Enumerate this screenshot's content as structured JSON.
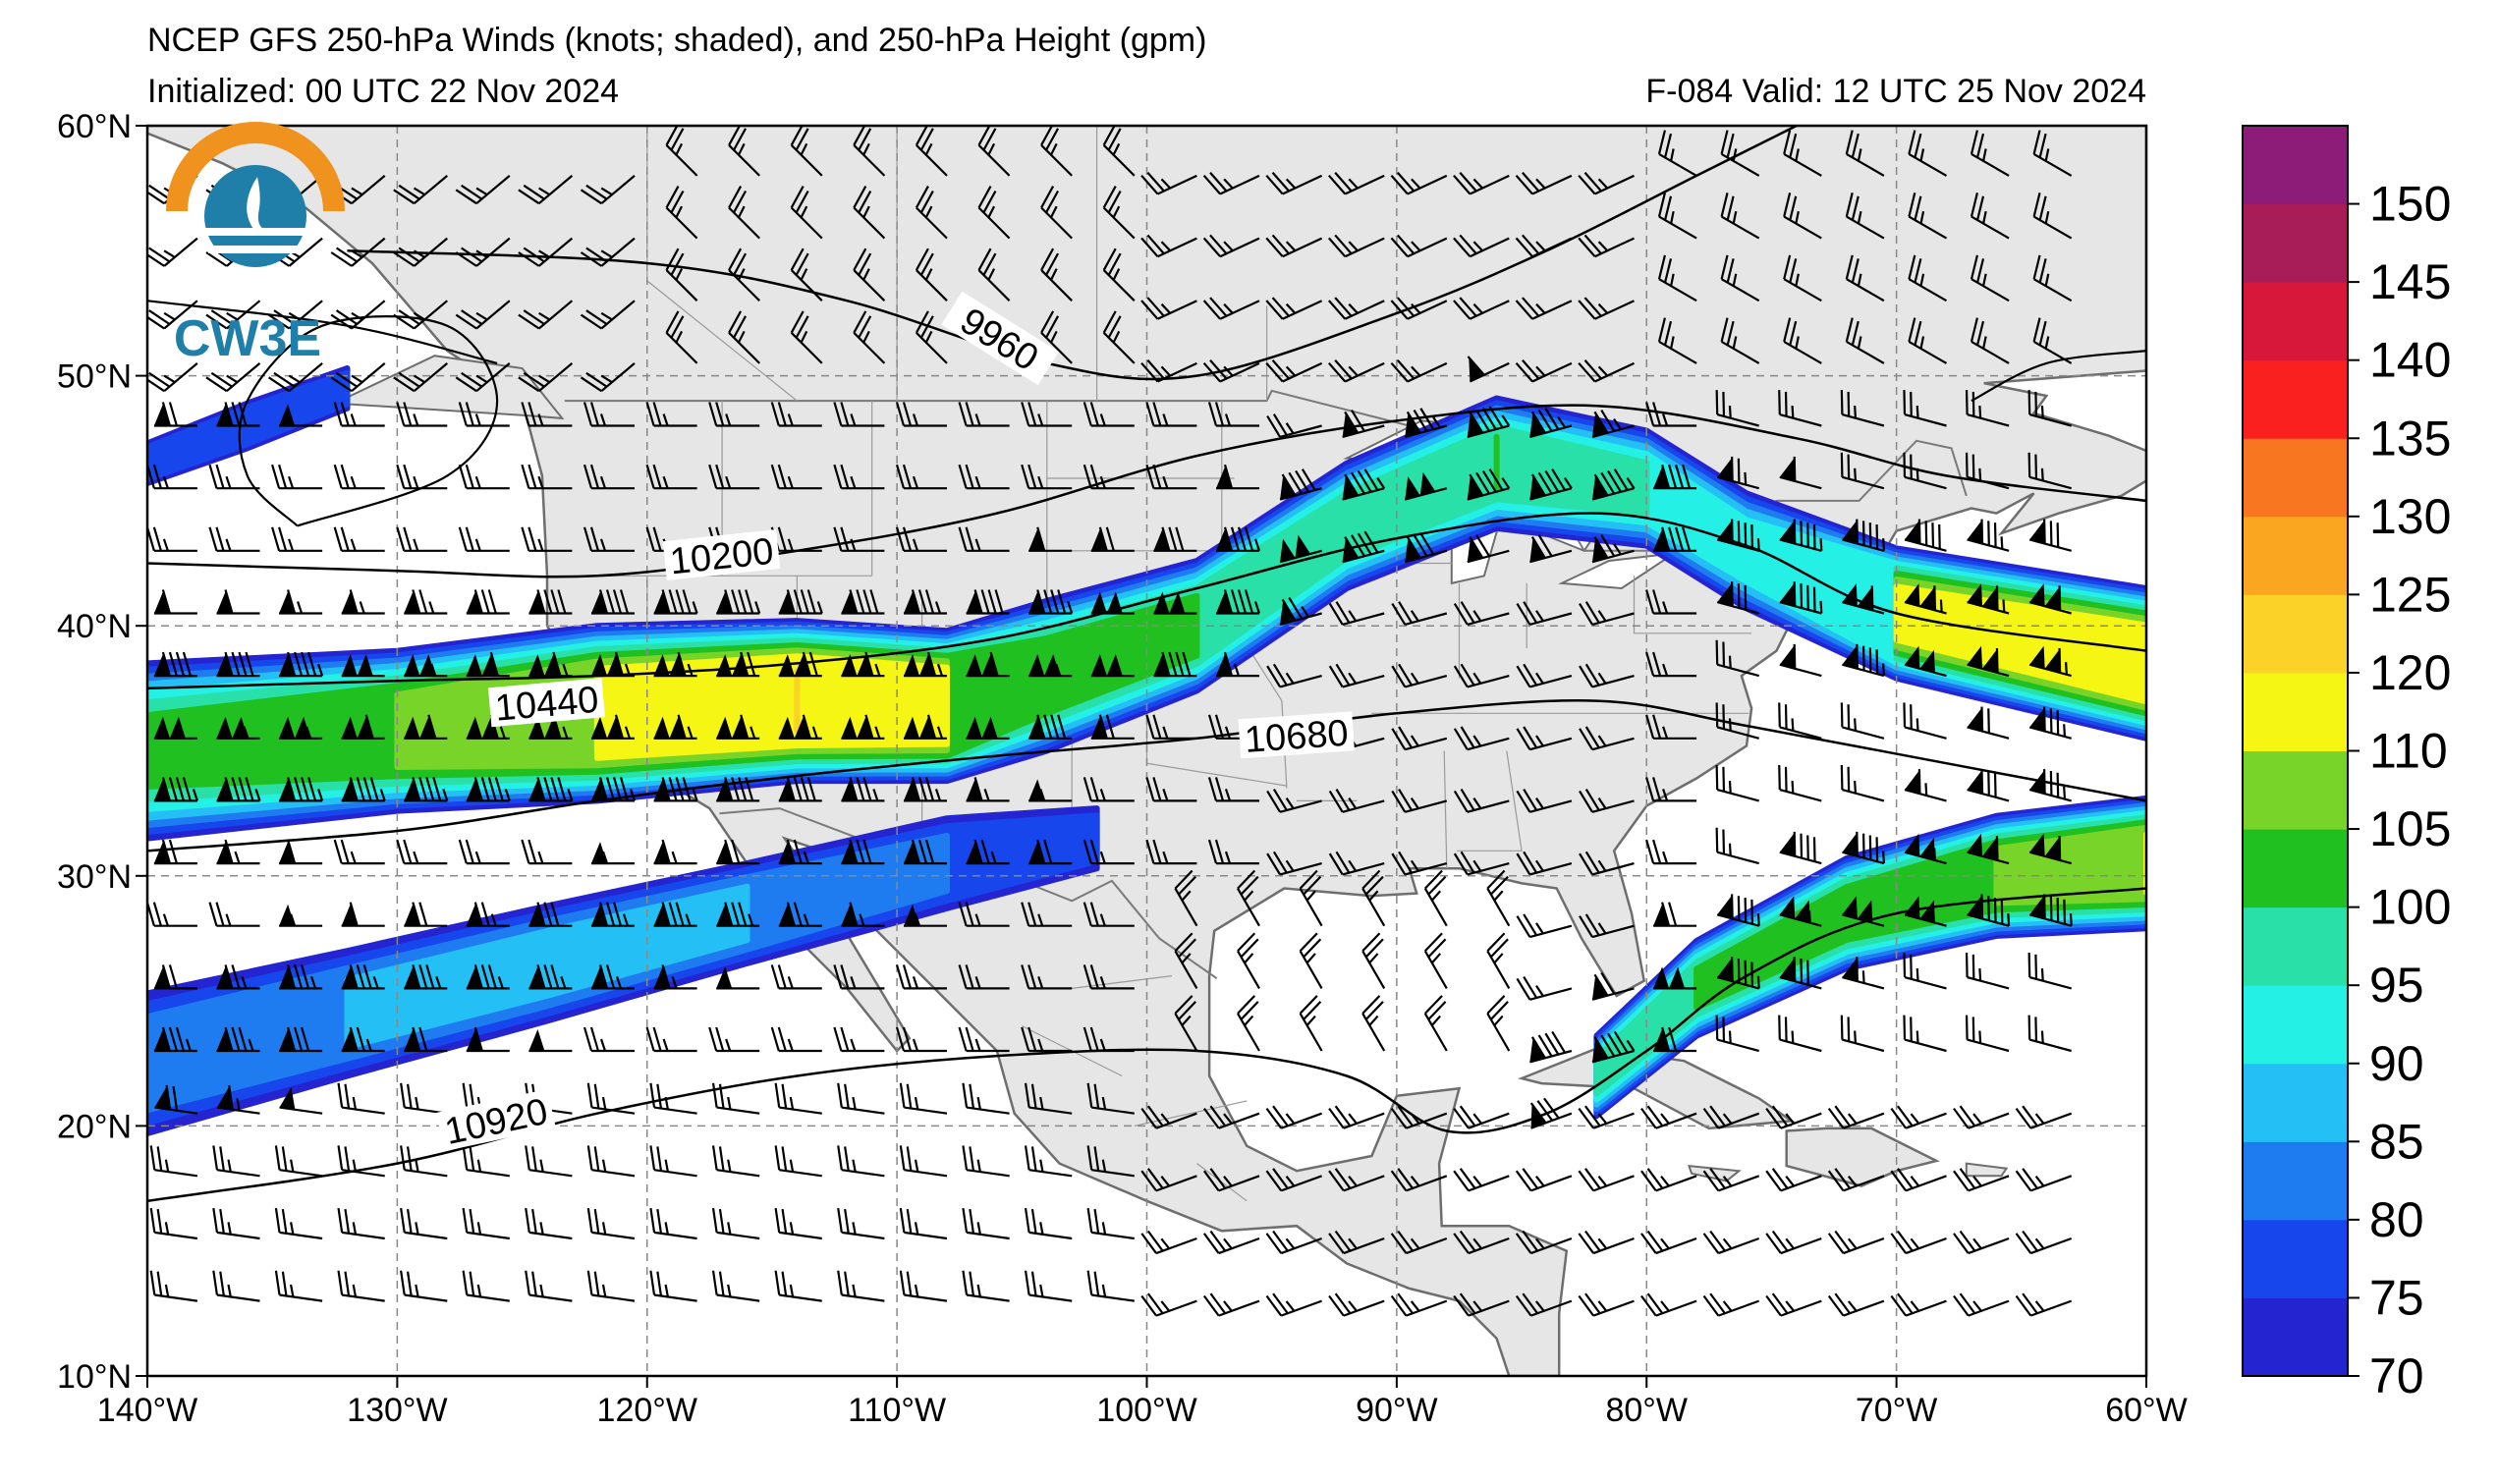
{
  "title": {
    "line1": "NCEP GFS 250-hPa Winds (knots; shaded), and 250-hPa Height (gpm)",
    "initialized": "Initialized: 00 UTC 22 Nov 2024",
    "valid": "F-084  Valid: 12 UTC 25 Nov 2024"
  },
  "logo": {
    "text": "CW3E"
  },
  "map": {
    "lon_range": [
      -140,
      -60
    ],
    "lat_range": [
      10,
      60
    ],
    "lon_ticks": [
      {
        "value": -140,
        "label": "140°W"
      },
      {
        "value": -130,
        "label": "130°W"
      },
      {
        "value": -120,
        "label": "120°W"
      },
      {
        "value": -110,
        "label": "110°W"
      },
      {
        "value": -100,
        "label": "100°W"
      },
      {
        "value": -90,
        "label": "90°W"
      },
      {
        "value": -80,
        "label": "80°W"
      },
      {
        "value": -70,
        "label": "70°W"
      },
      {
        "value": -60,
        "label": "60°W"
      }
    ],
    "lat_ticks": [
      {
        "value": 60,
        "label": "60°N"
      },
      {
        "value": 50,
        "label": "50°N"
      },
      {
        "value": 40,
        "label": "40°N"
      },
      {
        "value": 30,
        "label": "30°N"
      },
      {
        "value": 20,
        "label": "20°N"
      },
      {
        "value": 10,
        "label": "10°N"
      }
    ],
    "land_color": "#e6e6e6",
    "ocean_color": "#ffffff",
    "gridlines": true
  },
  "contours": [
    {
      "label": "9960",
      "points": [
        [
          -132,
          55
        ],
        [
          -120,
          54.5
        ],
        [
          -112,
          53
        ],
        [
          -104,
          50.5
        ],
        [
          -98,
          50
        ],
        [
          -90,
          52.5
        ],
        [
          -84,
          55
        ],
        [
          -78,
          58
        ],
        [
          -74,
          60
        ]
      ],
      "label_at": [
        -106,
        51.3
      ],
      "label_angle": 32
    },
    {
      "label": "10200",
      "points": [
        [
          -140,
          42.5
        ],
        [
          -130,
          42.2
        ],
        [
          -122,
          42
        ],
        [
          -114,
          43
        ],
        [
          -106,
          44.5
        ],
        [
          -98,
          46.8
        ],
        [
          -90,
          48.2
        ],
        [
          -82,
          48.8
        ],
        [
          -74,
          47.5
        ],
        [
          -68,
          46
        ],
        [
          -60,
          45
        ]
      ],
      "label_at": [
        -117,
        42.6
      ],
      "label_angle": -6
    },
    {
      "label": "10440",
      "points": [
        [
          -140,
          37.5
        ],
        [
          -130,
          37.8
        ],
        [
          -122,
          38
        ],
        [
          -114,
          38.5
        ],
        [
          -106,
          39.5
        ],
        [
          -98,
          41.5
        ],
        [
          -90,
          43.5
        ],
        [
          -82,
          44.5
        ],
        [
          -76,
          43.2
        ],
        [
          -70,
          40.5
        ],
        [
          -60,
          39
        ]
      ],
      "label_at": [
        -124,
        36.7
      ],
      "label_angle": -5
    },
    {
      "label": "10680",
      "points": [
        [
          -140,
          31
        ],
        [
          -130,
          31.8
        ],
        [
          -122,
          33
        ],
        [
          -114,
          34
        ],
        [
          -106,
          34.8
        ],
        [
          -98,
          35.5
        ],
        [
          -90,
          36.5
        ],
        [
          -82,
          37
        ],
        [
          -76,
          36
        ],
        [
          -68,
          34.5
        ],
        [
          -60,
          33
        ]
      ],
      "label_at": [
        -94,
        35.4
      ],
      "label_angle": -4
    },
    {
      "label": "10920",
      "points": [
        [
          -140,
          17
        ],
        [
          -130,
          18.5
        ],
        [
          -122,
          20.5
        ],
        [
          -114,
          22
        ],
        [
          -106,
          22.8
        ],
        [
          -98,
          23
        ],
        [
          -92,
          22
        ],
        [
          -88,
          19.8
        ],
        [
          -84,
          20.5
        ],
        [
          -80,
          23
        ],
        [
          -76,
          26
        ],
        [
          -70,
          28.5
        ],
        [
          -60,
          29.5
        ]
      ],
      "label_at": [
        -126,
        20
      ],
      "label_angle": -12
    }
  ],
  "jets": [
    {
      "name": "northern",
      "points": [
        [
          -140,
          35
        ],
        [
          -130,
          35.8
        ],
        [
          -122,
          36.5
        ],
        [
          -114,
          37
        ],
        [
          -108,
          36.8
        ],
        [
          -104,
          38
        ],
        [
          -98,
          40
        ],
        [
          -92,
          44
        ],
        [
          -86,
          46.5
        ],
        [
          -80,
          45.5
        ],
        [
          -76,
          43
        ],
        [
          -70,
          40.5
        ],
        [
          -60,
          38.5
        ]
      ],
      "halfwidth": [
        3.5,
        3.2,
        3.5,
        3.2,
        3.0,
        3.0,
        2.6,
        2.5,
        2.6,
        2.3,
        2.3,
        2.6,
        3.0
      ],
      "core": [
        100,
        108,
        118,
        122,
        118,
        104,
        102,
        98,
        100,
        95,
        92,
        112,
        118
      ]
    },
    {
      "name": "southern",
      "points": [
        [
          -140,
          22.5
        ],
        [
          -132,
          24.5
        ],
        [
          -124,
          26.5
        ],
        [
          -116,
          28.5
        ],
        [
          -108,
          30.5
        ],
        [
          -102,
          31.5
        ]
      ],
      "halfwidth": [
        2.8,
        2.5,
        2.3,
        2.0,
        1.8,
        1.2
      ],
      "core": [
        82,
        85,
        86,
        85,
        80,
        76
      ]
    },
    {
      "name": "caribbean",
      "points": [
        [
          -82,
          22
        ],
        [
          -78,
          25.5
        ],
        [
          -72,
          28.5
        ],
        [
          -66,
          30
        ],
        [
          -60,
          30.5
        ]
      ],
      "halfwidth": [
        1.6,
        1.9,
        2.2,
        2.4,
        2.6
      ],
      "core": [
        95,
        100,
        103,
        108,
        114
      ]
    },
    {
      "name": "pacific_nw",
      "points": [
        [
          -140,
          46.5
        ],
        [
          -136,
          48
        ],
        [
          -132,
          49.5
        ]
      ],
      "halfwidth": [
        0.8,
        0.9,
        0.8
      ],
      "core": [
        78,
        79,
        77
      ]
    }
  ],
  "colorbar": {
    "levels": [
      70,
      75,
      80,
      85,
      90,
      95,
      100,
      105,
      110,
      120,
      125,
      130,
      135,
      140,
      145,
      150,
      155
    ],
    "colors": [
      "#2424d0",
      "#1646ec",
      "#1f7cf0",
      "#24c0f5",
      "#24f0e6",
      "#28e0a8",
      "#20c020",
      "#78d428",
      "#f6f614",
      "#fad228",
      "#faa620",
      "#f87620",
      "#fa2020",
      "#d8183a",
      "#a81c58",
      "#8c1c78"
    ],
    "labels": [
      "70",
      "75",
      "80",
      "85",
      "90",
      "95",
      "100",
      "105",
      "110",
      "120",
      "125",
      "130",
      "135",
      "140",
      "145",
      "150"
    ]
  }
}
